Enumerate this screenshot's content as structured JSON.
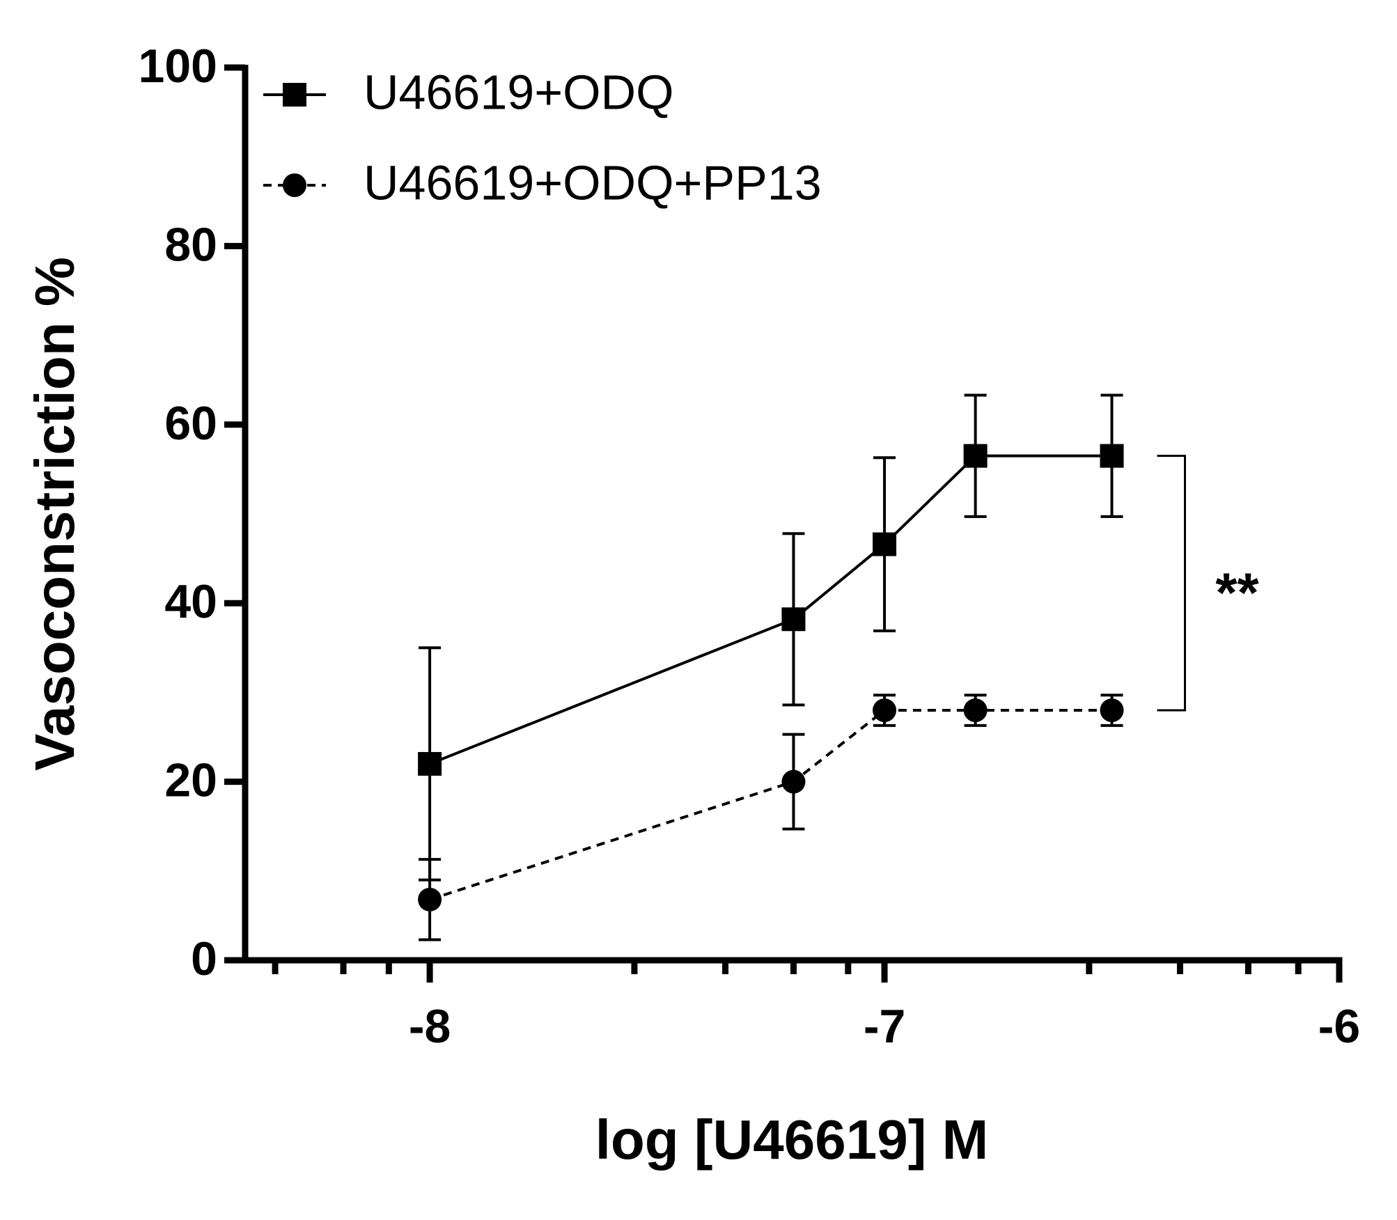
{
  "chart_data": {
    "type": "line",
    "xlabel": "log [U46619] M",
    "ylabel": "Vasoconstriction %",
    "x": [
      -8,
      -7.2,
      -7,
      -6.8,
      -6.5
    ],
    "series": [
      {
        "name": "U46619+ODQ",
        "color": "#000000",
        "marker": "square",
        "linestyle": "solid",
        "values": [
          22,
          38.2,
          46.6,
          56.5,
          56.5
        ],
        "errors": [
          13,
          9.6,
          9.7,
          6.8,
          6.8
        ]
      },
      {
        "name": "U46619+ODQ+PP13",
        "color": "#000000",
        "marker": "circle",
        "linestyle": "dashed",
        "values": [
          6.8,
          20,
          28,
          28,
          28
        ],
        "errors": [
          4.5,
          5.3,
          1.7,
          1.7,
          1.7
        ]
      }
    ],
    "xlim": [
      -8.406,
      -6
    ],
    "xticks": [
      -8,
      -7,
      -6
    ],
    "xminorticks": [
      -8.34,
      -8.19,
      -8.09,
      -7.55,
      -7.35,
      -7.2,
      -7.08,
      -6.55,
      -6.35,
      -6.2,
      -6.09
    ],
    "ylim": [
      0,
      100
    ],
    "yticks": [
      0,
      20,
      40,
      60,
      80,
      100
    ],
    "annotation": "**",
    "legend": "upper left"
  }
}
